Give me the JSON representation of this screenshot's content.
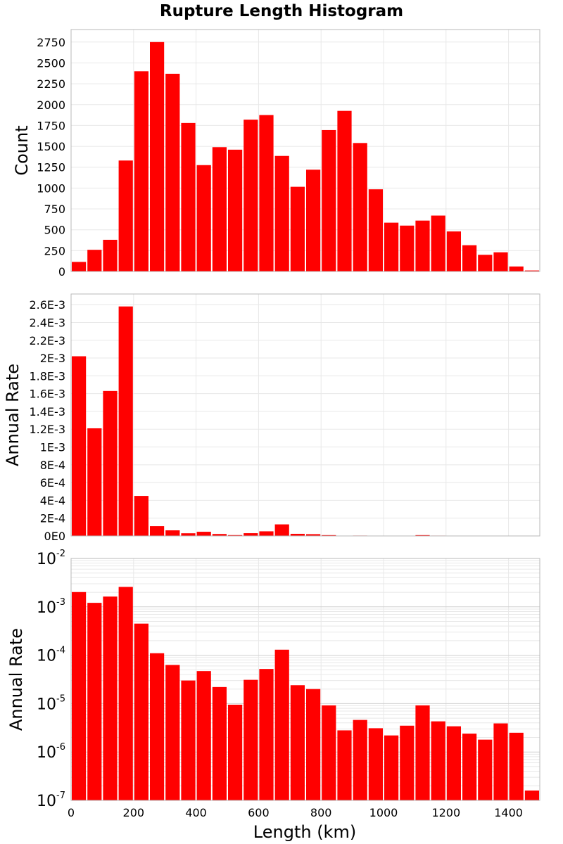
{
  "title": "Rupture Length Histogram",
  "colors": {
    "bar": "#ff0000",
    "grid": "#e8e8e8",
    "frame": "#b8b8b8"
  },
  "chart_data": [
    {
      "type": "bar",
      "xlabel": "",
      "ylabel": "Count",
      "xlim": [
        0,
        1500
      ],
      "ylim": [
        0,
        2900
      ],
      "bin_width": 50,
      "x": [
        25,
        75,
        125,
        175,
        225,
        275,
        325,
        375,
        425,
        475,
        525,
        575,
        625,
        675,
        725,
        775,
        825,
        875,
        925,
        975,
        1025,
        1075,
        1125,
        1175,
        1225,
        1275,
        1325,
        1375,
        1425,
        1475
      ],
      "values": [
        115,
        260,
        380,
        1330,
        2400,
        2750,
        2370,
        1780,
        1275,
        1490,
        1460,
        1820,
        1875,
        1385,
        1015,
        1220,
        1695,
        1925,
        1540,
        985,
        585,
        550,
        610,
        670,
        480,
        315,
        200,
        230,
        60,
        12
      ],
      "yticks": [
        "0",
        "250",
        "500",
        "750",
        "1000",
        "1250",
        "1500",
        "1750",
        "2000",
        "2250",
        "2500",
        "2750"
      ],
      "xticks": [
        "0",
        "200",
        "400",
        "600",
        "800",
        "1000",
        "1200",
        "1400"
      ],
      "grid": true
    },
    {
      "type": "bar",
      "xlabel": "",
      "ylabel": "Annual Rate",
      "xlim": [
        0,
        1500
      ],
      "ylim": [
        0,
        0.00272
      ],
      "bin_width": 50,
      "x": [
        25,
        75,
        125,
        175,
        225,
        275,
        325,
        375,
        425,
        475,
        525,
        575,
        625,
        675,
        725,
        775,
        825,
        875,
        925,
        975,
        1025,
        1075,
        1125,
        1175,
        1225,
        1275,
        1325,
        1375,
        1425,
        1475
      ],
      "values": [
        0.00202,
        0.00121,
        0.00163,
        0.00258,
        0.00045,
        0.00011,
        6.3e-05,
        3e-05,
        4.7e-05,
        2.2e-05,
        9.5e-06,
        3.1e-05,
        5.2e-05,
        0.00013,
        2.4e-05,
        2e-05,
        9.2e-06,
        2.8e-06,
        4.6e-06,
        3.1e-06,
        2.2e-06,
        3.5e-06,
        9.2e-06,
        4.3e-06,
        3.4e-06,
        2.4e-06,
        1.8e-06,
        3.9e-06,
        2.5e-06,
        1.6e-07
      ],
      "yticks": [
        "0E0",
        "2E-4",
        "4E-4",
        "6E-4",
        "8E-4",
        "1E-3",
        "1.2E-3",
        "1.4E-3",
        "1.6E-3",
        "1.8E-3",
        "2E-3",
        "2.2E-3",
        "2.4E-3",
        "2.6E-3"
      ],
      "xticks": [
        "0",
        "200",
        "400",
        "600",
        "800",
        "1000",
        "1200",
        "1400"
      ],
      "grid": true
    },
    {
      "type": "bar",
      "xlabel": "Length (km)",
      "ylabel": "Annual Rate",
      "xlim": [
        0,
        1500
      ],
      "ylim": [
        1e-07,
        0.01
      ],
      "yscale": "log",
      "bin_width": 50,
      "x": [
        25,
        75,
        125,
        175,
        225,
        275,
        325,
        375,
        425,
        475,
        525,
        575,
        625,
        675,
        725,
        775,
        825,
        875,
        925,
        975,
        1025,
        1075,
        1125,
        1175,
        1225,
        1275,
        1325,
        1375,
        1425,
        1475
      ],
      "values": [
        0.00202,
        0.00121,
        0.00163,
        0.00258,
        0.00045,
        0.00011,
        6.3e-05,
        3e-05,
        4.7e-05,
        2.2e-05,
        9.5e-06,
        3.1e-05,
        5.2e-05,
        0.00013,
        2.4e-05,
        2e-05,
        9.2e-06,
        2.8e-06,
        4.6e-06,
        3.1e-06,
        2.2e-06,
        3.5e-06,
        9.2e-06,
        4.3e-06,
        3.4e-06,
        2.4e-06,
        1.8e-06,
        3.9e-06,
        2.5e-06,
        1.6e-07
      ],
      "yticks": [
        {
          "base": "10",
          "exp": "-7"
        },
        {
          "base": "10",
          "exp": "-6"
        },
        {
          "base": "10",
          "exp": "-5"
        },
        {
          "base": "10",
          "exp": "-4"
        },
        {
          "base": "10",
          "exp": "-3"
        },
        {
          "base": "10",
          "exp": "-2"
        }
      ],
      "xticks": [
        "0",
        "200",
        "400",
        "600",
        "800",
        "1000",
        "1200",
        "1400"
      ],
      "grid": true
    }
  ]
}
